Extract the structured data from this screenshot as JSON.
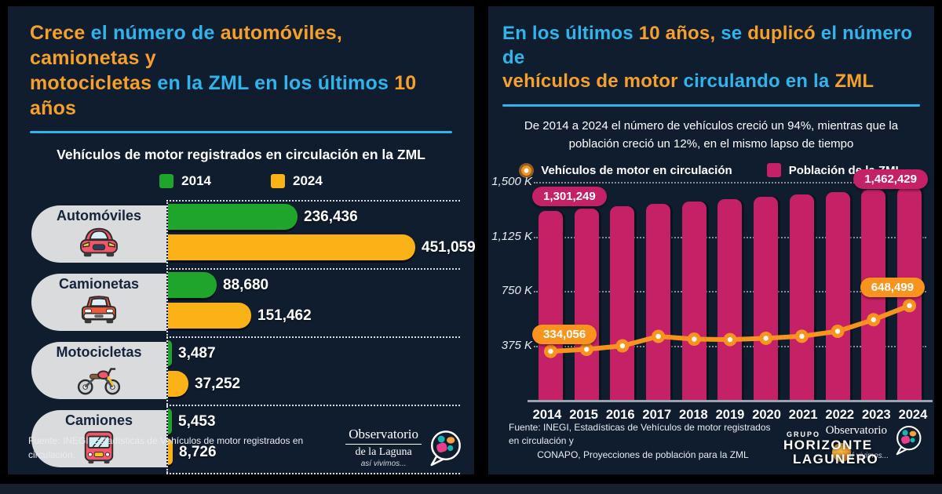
{
  "colors": {
    "background": "#101d2e",
    "frame": "#000000",
    "cyan": "#2fb5eb",
    "orange": "#f6a02c",
    "green_2014": "#1fa42c",
    "amber_2024": "#fbb216",
    "magenta": "#c42167",
    "line_orange": "#f8941d",
    "pill_gray": "#d9dbdd"
  },
  "left_panel": {
    "title_segments": [
      {
        "text": "Crece ",
        "color": "orange"
      },
      {
        "text": "el número de ",
        "color": "cyan"
      },
      {
        "text": "automóviles, camionetas y",
        "color": "orange"
      },
      {
        "break": true
      },
      {
        "text": "motocicletas ",
        "color": "orange"
      },
      {
        "text": "en la ZML en los últimos ",
        "color": "cyan"
      },
      {
        "text": "10 años",
        "color": "orange"
      }
    ],
    "chart_title": "Vehículos de motor registrados en circulación en la ZML",
    "legend": [
      {
        "label": "2014",
        "color": "#1fa42c"
      },
      {
        "label": "2024",
        "color": "#fbb216"
      }
    ],
    "source": "Fuente: INEGI, Estadísticas de Vehículos de motor registrados en circulación."
  },
  "right_panel": {
    "title_segments": [
      {
        "text": "En los últimos ",
        "color": "cyan"
      },
      {
        "text": "10 años,",
        "color": "orange"
      },
      {
        "text": " se ",
        "color": "cyan"
      },
      {
        "text": "duplicó",
        "color": "orange"
      },
      {
        "text": " el número de",
        "color": "cyan"
      },
      {
        "break": true
      },
      {
        "text": "vehículos de motor ",
        "color": "orange"
      },
      {
        "text": "circulando en la ",
        "color": "cyan"
      },
      {
        "text": "ZML",
        "color": "orange"
      }
    ],
    "subtitle": "De 2014 a 2024 el número de vehículos creció un 94%, mientras que la población creció un 12%, en el mismo lapso de tiempo",
    "legend": [
      {
        "label": "Vehículos de motor en circulación",
        "marker": "orange-dot",
        "color": "#f8941d"
      },
      {
        "label": "Población de la ZML",
        "marker": "magenta-square",
        "color": "#c42167"
      }
    ],
    "badges": {
      "pop_first": "1,301,249",
      "pop_last": "1,462,429",
      "veh_first": "334,056",
      "veh_last": "648,499"
    },
    "source_line1": "Fuente: INEGI, Estadísticas de Vehículos de motor registrados en circulación y",
    "source_line2": "CONAPO, Proyecciones de población para la ZML"
  },
  "observatorio_logo": {
    "line1": "Observatorio",
    "line2": "de la Laguna",
    "tagline": "así vivimos..."
  },
  "grupo_logo": {
    "small": "GRUPO",
    "line1": "HORIZONTE",
    "line2": "LAGUNERO"
  },
  "chart_data": [
    {
      "type": "bar",
      "orientation": "horizontal",
      "title": "Vehículos de motor registrados en circulación en la ZML",
      "categories": [
        "Automóviles",
        "Camionetas",
        "Motocicletas",
        "Camiones"
      ],
      "icons": [
        "car-icon",
        "suv-icon",
        "motorcycle-icon",
        "bus-icon"
      ],
      "series": [
        {
          "name": "2014",
          "color": "#1fa42c",
          "values": [
            236436,
            88680,
            3487,
            5453
          ],
          "labels": [
            "236,436",
            "88,680",
            "3,487",
            "5,453"
          ]
        },
        {
          "name": "2024",
          "color": "#fbb216",
          "values": [
            451059,
            151462,
            37252,
            8726
          ],
          "labels": [
            "451,059",
            "151,462",
            "37,252",
            "8,726"
          ]
        }
      ],
      "xlim": [
        0,
        470000
      ],
      "legend_position": "top",
      "grid": "dotted-row-separators"
    },
    {
      "type": "combo",
      "x": [
        2014,
        2015,
        2016,
        2017,
        2018,
        2019,
        2020,
        2021,
        2022,
        2023,
        2024
      ],
      "series": [
        {
          "name": "Población de la ZML",
          "type": "bar",
          "color": "#c42167",
          "values": [
            1301249,
            1317000,
            1333000,
            1349000,
            1365000,
            1381000,
            1397000,
            1414000,
            1430000,
            1446000,
            1462429
          ],
          "labels_shown": {
            "2014": "1,301,249",
            "2024": "1,462,429"
          },
          "note": "intermediate values estimated from bar heights"
        },
        {
          "name": "Vehículos de motor en circulación",
          "type": "line",
          "color": "#f8941d",
          "values": [
            334056,
            348000,
            372000,
            437000,
            418000,
            415000,
            424000,
            438000,
            472000,
            552000,
            648499
          ],
          "labels_shown": {
            "2014": "334,056",
            "2024": "648,499"
          },
          "note": "intermediate values estimated from line position"
        }
      ],
      "yticks": [
        {
          "label": "1,500 K",
          "value": 1500000
        },
        {
          "label": "1,125 K",
          "value": 1125000
        },
        {
          "label": "750 K",
          "value": 750000
        },
        {
          "label": "375 K",
          "value": 375000
        }
      ],
      "ylim": [
        0,
        1500000
      ],
      "legend_position": "top",
      "grid": "horizontal-dotted"
    }
  ]
}
